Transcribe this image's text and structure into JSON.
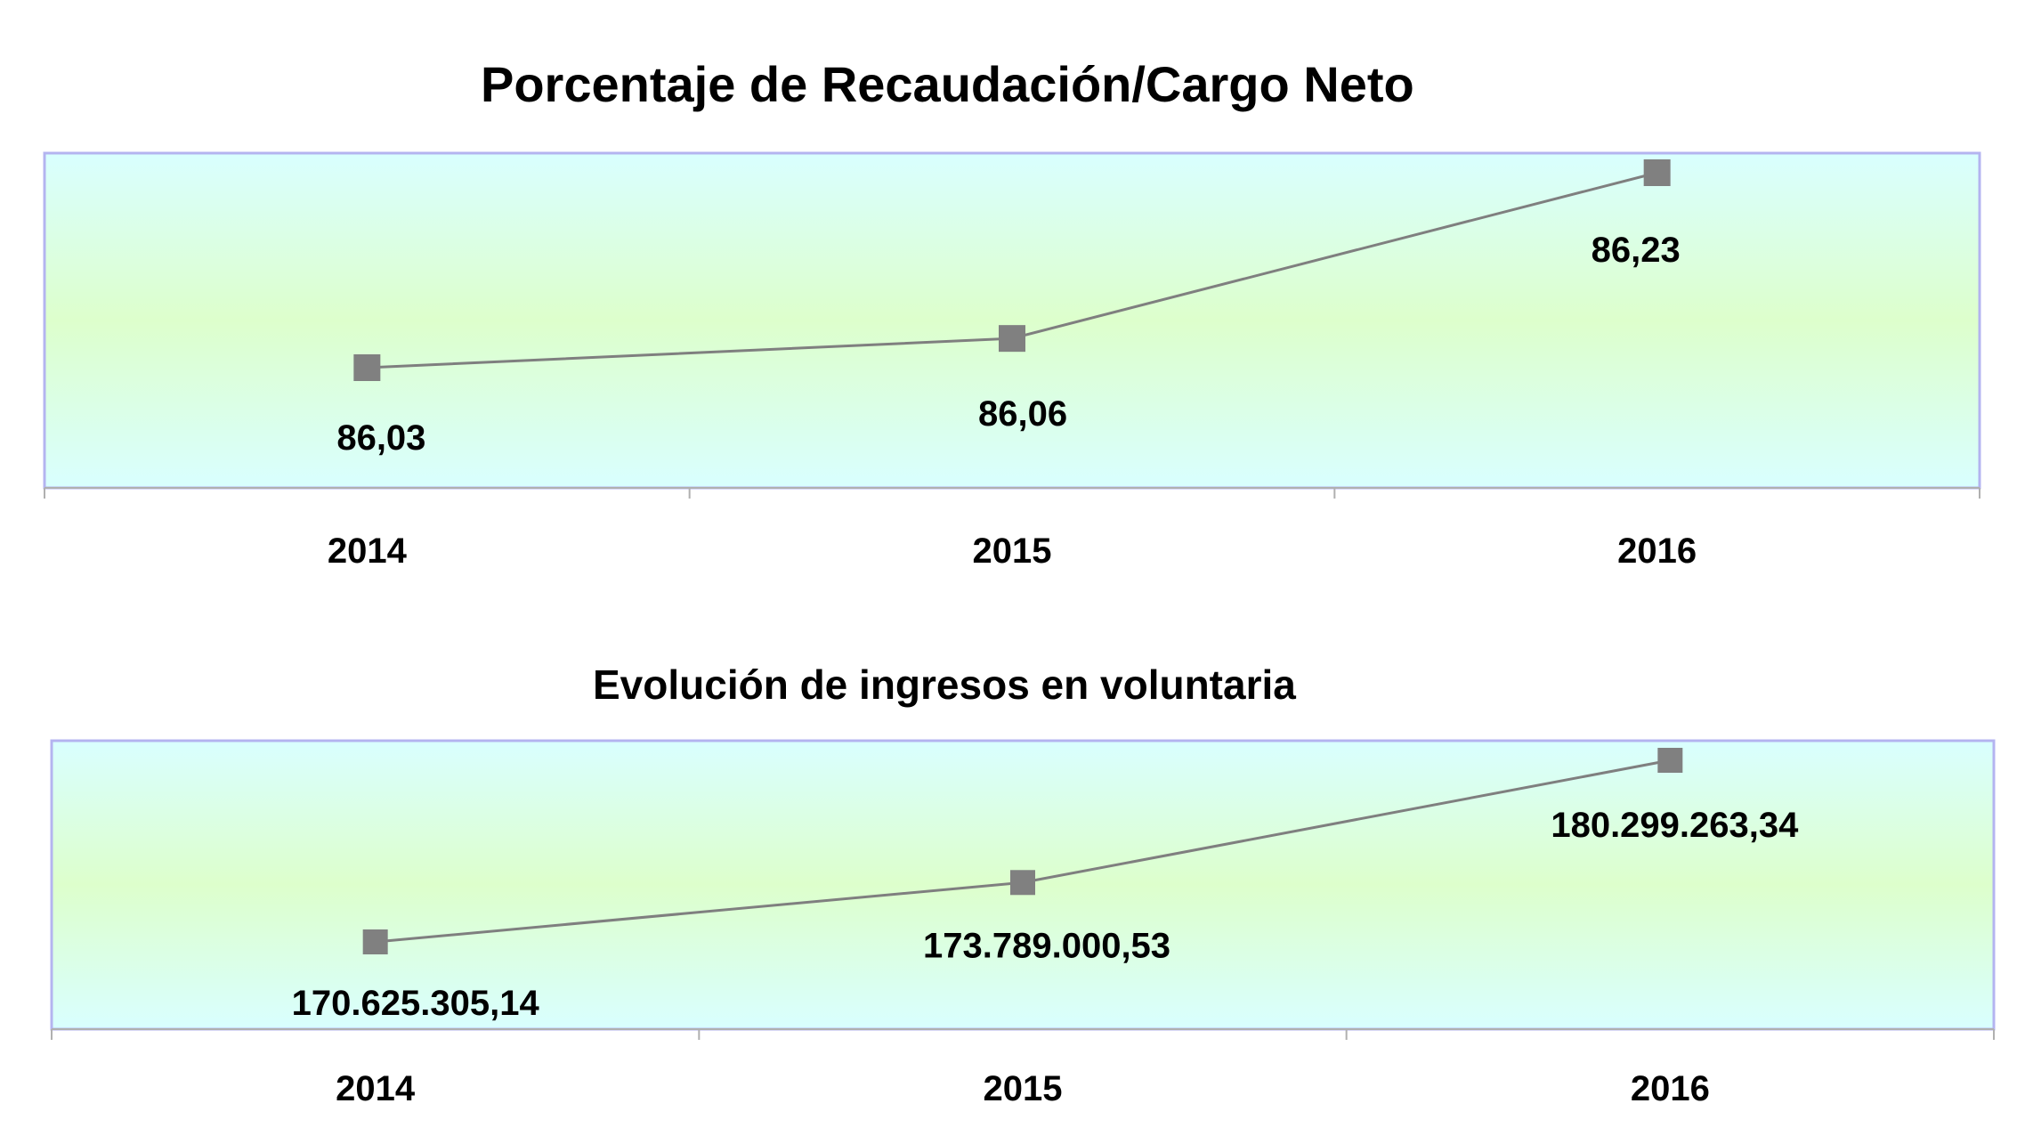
{
  "chart_data": [
    {
      "type": "line",
      "title": "Porcentaje de Recaudación/Cargo Neto",
      "categories": [
        "2014",
        "2015",
        "2016"
      ],
      "values": [
        86.03,
        86.06,
        86.23
      ],
      "data_labels": [
        "86,03",
        "86,06",
        "86,23"
      ],
      "xlabel": "",
      "ylabel": "",
      "grid": false,
      "legend": "none",
      "colors": {
        "line": "#7f7f7f",
        "marker": "#808080",
        "plot_border": "#b4b4f0",
        "plot_bg_top": "#d9ffff",
        "plot_bg_mid": "#ddffcc"
      }
    },
    {
      "type": "line",
      "title": "Evolución de ingresos en voluntaria",
      "categories": [
        "2014",
        "2015",
        "2016"
      ],
      "values": [
        170625305.14,
        173789000.53,
        180299263.34
      ],
      "data_labels": [
        "170.625.305,14",
        "173.789.000,53",
        "180.299.263,34"
      ],
      "xlabel": "",
      "ylabel": "",
      "grid": false,
      "legend": "none",
      "colors": {
        "line": "#7f7f7f",
        "marker": "#808080",
        "plot_border": "#b4b4f0",
        "plot_bg_top": "#d9ffff",
        "plot_bg_mid": "#ddffcc"
      }
    }
  ]
}
